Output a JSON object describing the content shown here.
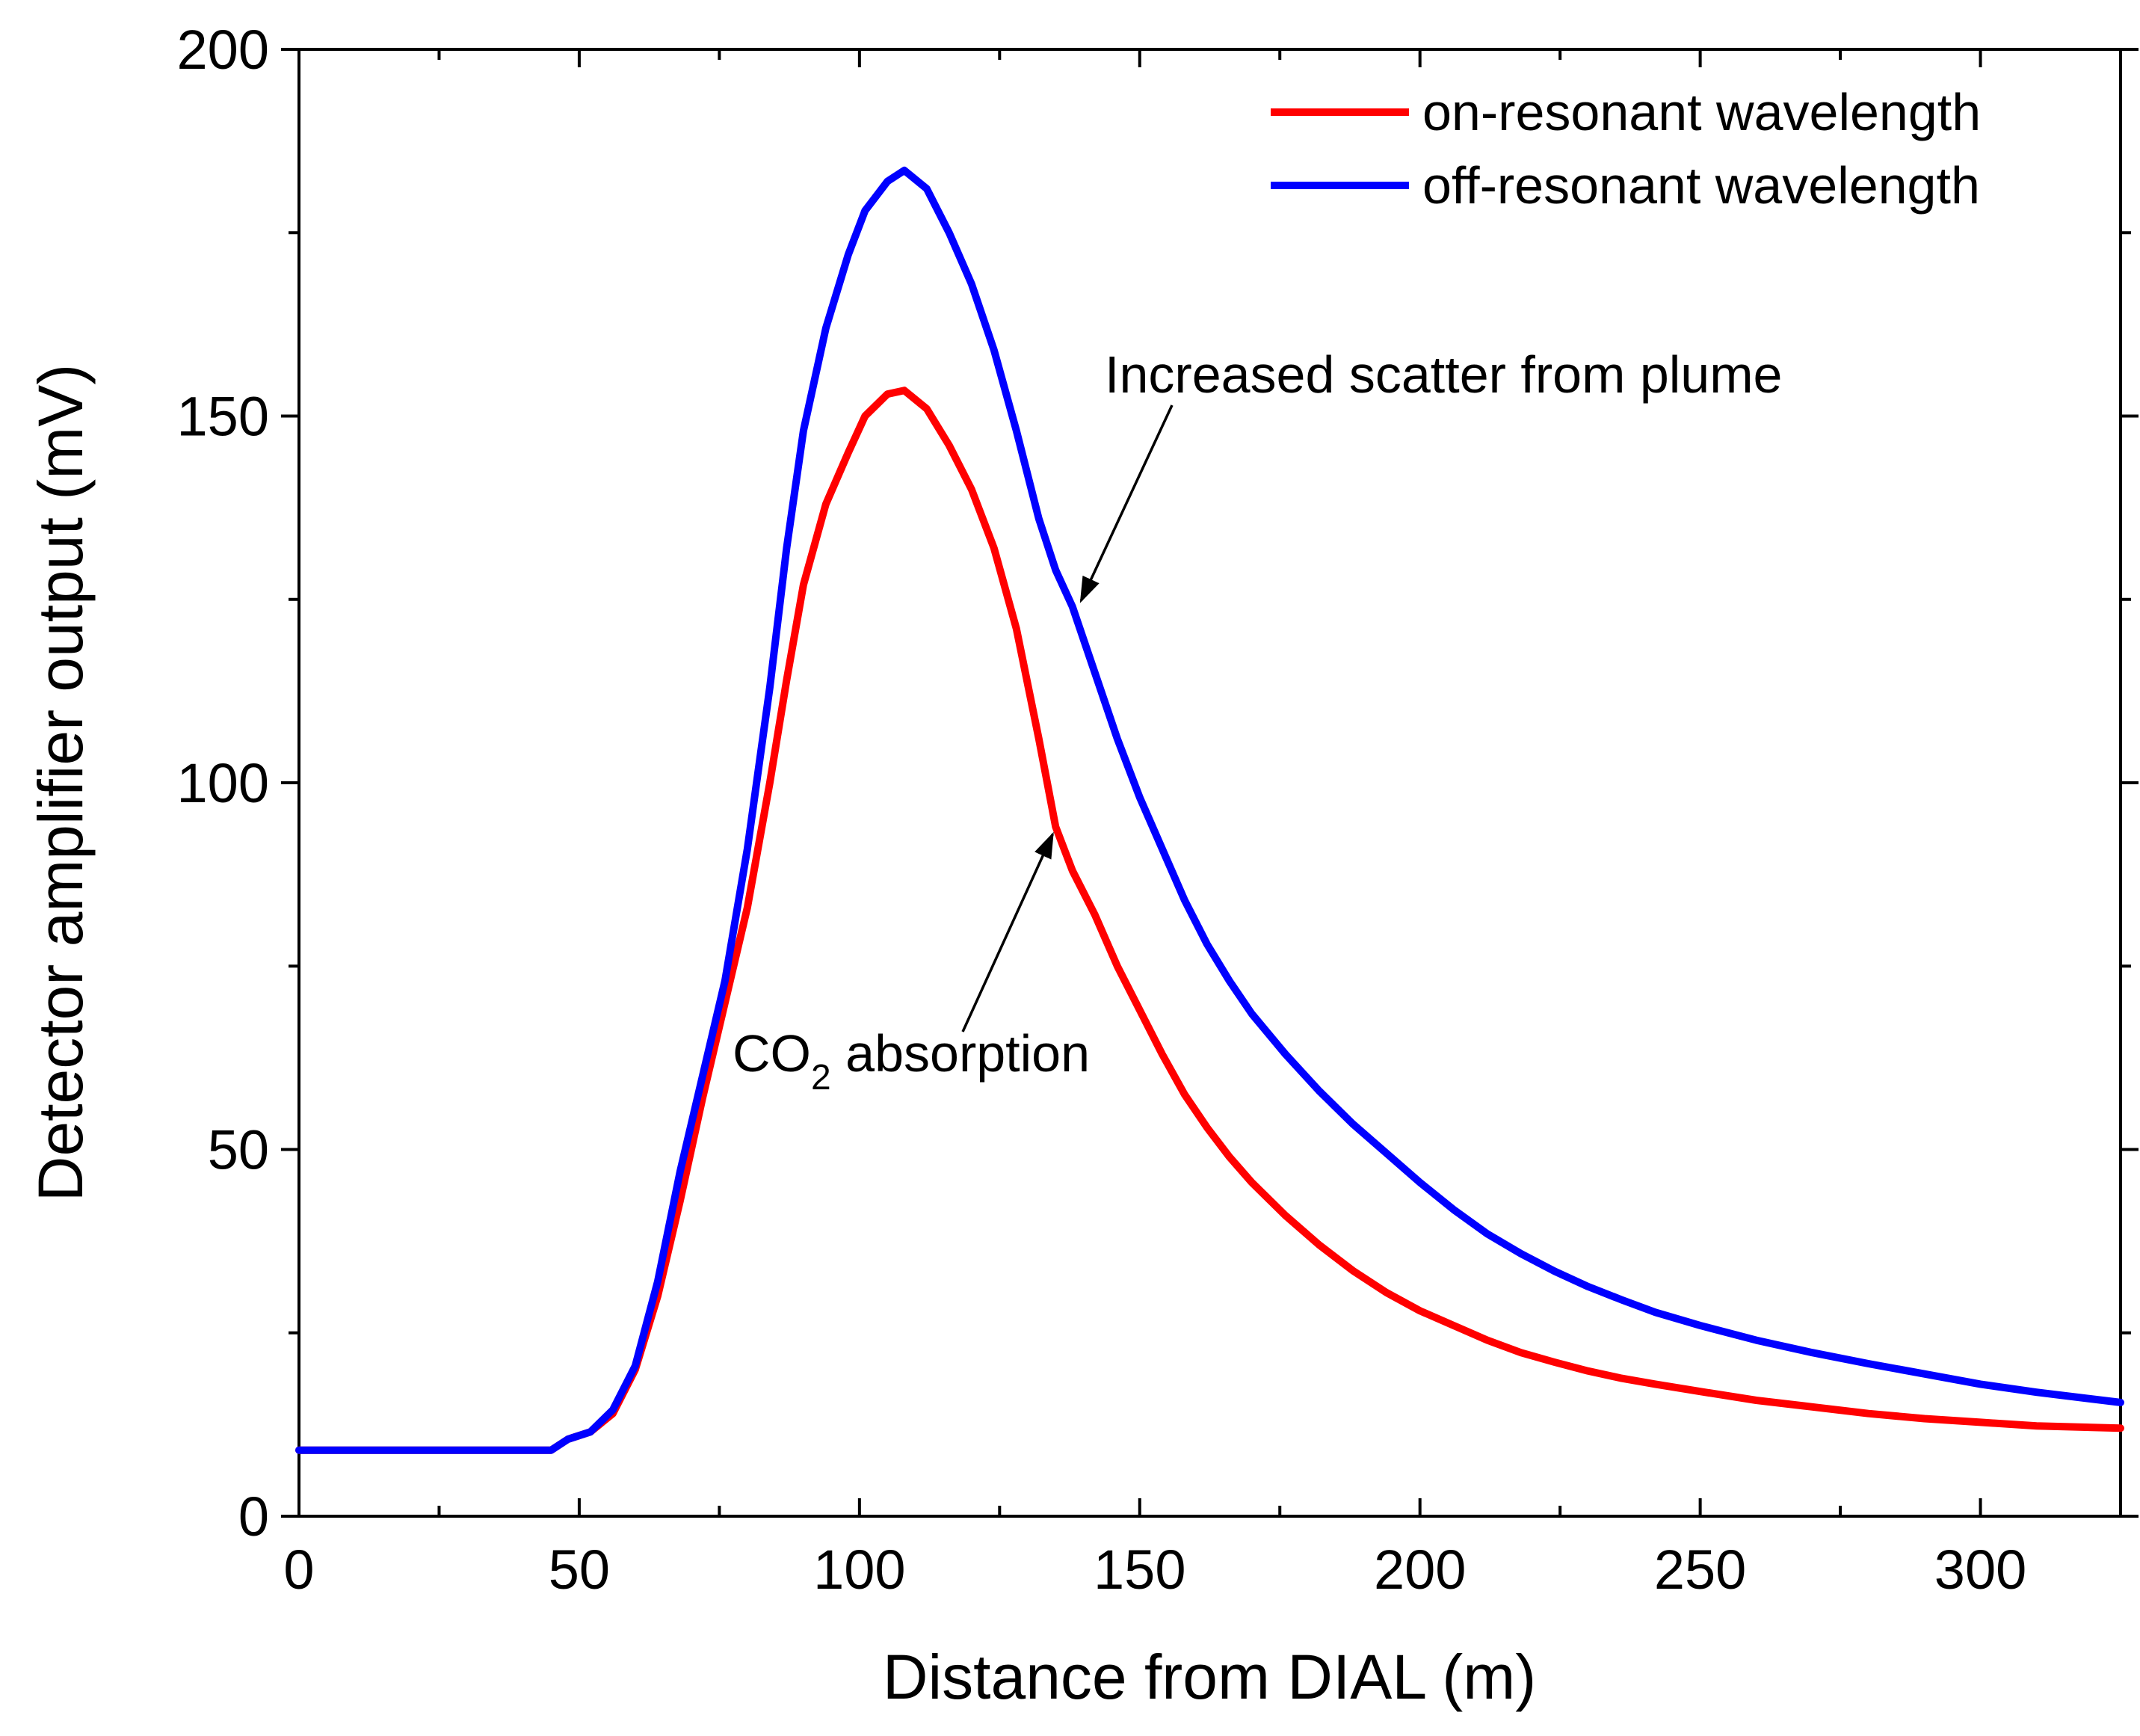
{
  "chart_data": {
    "type": "line",
    "title": "",
    "xlabel": "Distance from DIAL (m)",
    "ylabel": "Detector amplifier output (mV)",
    "xlim": [
      0,
      325
    ],
    "ylim": [
      0,
      200
    ],
    "x_ticks": [
      "0",
      "50",
      "100",
      "150",
      "200",
      "250",
      "300"
    ],
    "y_ticks": [
      "0",
      "50",
      "100",
      "150",
      "200"
    ],
    "grid": false,
    "legend_position": "top-right",
    "series": [
      {
        "name": "on-resonant wavelength",
        "color": "#ff0000",
        "x": [
          0,
          10,
          20,
          30,
          40,
          45,
          48,
          52,
          56,
          60,
          64,
          68,
          72,
          76,
          80,
          84,
          87,
          90,
          94,
          98,
          101,
          105,
          108,
          112,
          116,
          120,
          124,
          128,
          132,
          135,
          138,
          142,
          146,
          150,
          154,
          158,
          162,
          166,
          170,
          176,
          182,
          188,
          194,
          200,
          206,
          212,
          218,
          224,
          230,
          236,
          242,
          250,
          260,
          270,
          280,
          290,
          300,
          310,
          325
        ],
        "values": [
          9,
          9,
          9,
          9,
          9,
          9,
          10.5,
          11.5,
          14,
          20,
          30,
          43,
          57,
          70,
          83,
          100,
          114,
          127,
          138,
          145,
          150,
          153,
          153.5,
          151,
          146,
          140,
          132,
          121,
          106,
          94,
          88,
          82,
          75,
          69,
          63,
          57.5,
          53,
          49,
          45.5,
          41,
          37,
          33.5,
          30.5,
          28,
          26,
          24,
          22.3,
          21,
          19.8,
          18.8,
          18,
          17,
          15.8,
          14.9,
          14,
          13.3,
          12.8,
          12.3,
          12
        ]
      },
      {
        "name": "off-resonant wavelength",
        "color": "#0000ff",
        "x": [
          0,
          10,
          20,
          30,
          40,
          45,
          48,
          52,
          56,
          60,
          64,
          68,
          72,
          76,
          80,
          84,
          87,
          90,
          94,
          98,
          101,
          105,
          108,
          112,
          116,
          120,
          124,
          128,
          132,
          135,
          138,
          142,
          146,
          150,
          154,
          158,
          162,
          166,
          170,
          176,
          182,
          188,
          194,
          200,
          206,
          212,
          218,
          224,
          230,
          236,
          242,
          250,
          260,
          270,
          280,
          290,
          300,
          310,
          325
        ],
        "values": [
          9,
          9,
          9,
          9,
          9,
          9,
          10.5,
          11.5,
          14.5,
          20.5,
          32,
          47,
          60,
          73,
          91,
          113,
          132,
          148,
          162,
          172,
          178,
          182,
          183.5,
          181,
          175,
          168,
          159,
          148,
          136,
          129,
          124,
          115,
          106,
          98,
          91,
          84,
          78,
          73,
          68.5,
          63,
          58,
          53.5,
          49.5,
          45.5,
          41.8,
          38.5,
          35.8,
          33.4,
          31.3,
          29.5,
          27.8,
          26,
          24,
          22.3,
          20.8,
          19.4,
          18,
          16.9,
          15.5
        ]
      }
    ],
    "annotations": [
      {
        "text": "Increased scatter from plume",
        "points_to": {
          "series": "off-resonant wavelength",
          "x": 139,
          "y": 124
        }
      },
      {
        "text": "CO",
        "subscript": "2",
        "text_after": " absorption",
        "points_to": {
          "series": "on-resonant wavelength",
          "x": 135,
          "y": 94
        }
      }
    ]
  }
}
